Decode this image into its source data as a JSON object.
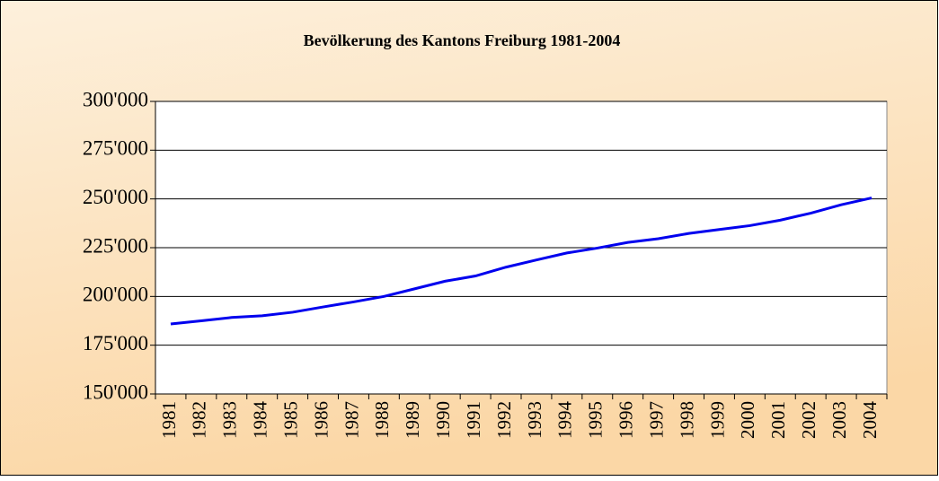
{
  "chart_data": {
    "type": "line",
    "title": "Bevölkerung des Kantons Freiburg 1981-2004",
    "categories": [
      "1981",
      "1982",
      "1983",
      "1984",
      "1985",
      "1986",
      "1987",
      "1988",
      "1989",
      "1990",
      "1991",
      "1992",
      "1993",
      "1994",
      "1995",
      "1996",
      "1997",
      "1998",
      "1999",
      "2000",
      "2001",
      "2002",
      "2003",
      "2004"
    ],
    "series": [
      {
        "name": "Bevölkerung",
        "color": "#0000ee",
        "values": [
          185900,
          187500,
          189200,
          190100,
          191900,
          194600,
          197200,
          200000,
          203900,
          207800,
          210500,
          215000,
          218700,
          222300,
          224800,
          227700,
          229600,
          232300,
          234300,
          236300,
          239100,
          242700,
          247000,
          250500
        ]
      }
    ],
    "ylim": [
      150000,
      300000
    ],
    "yticks": [
      {
        "value": 150000,
        "label": "150'000"
      },
      {
        "value": 175000,
        "label": "175'000"
      },
      {
        "value": 200000,
        "label": "200'000"
      },
      {
        "value": 225000,
        "label": "225'000"
      },
      {
        "value": 250000,
        "label": "250'000"
      },
      {
        "value": 275000,
        "label": "275'000"
      },
      {
        "value": 300000,
        "label": "300'000"
      }
    ],
    "grid": true
  }
}
